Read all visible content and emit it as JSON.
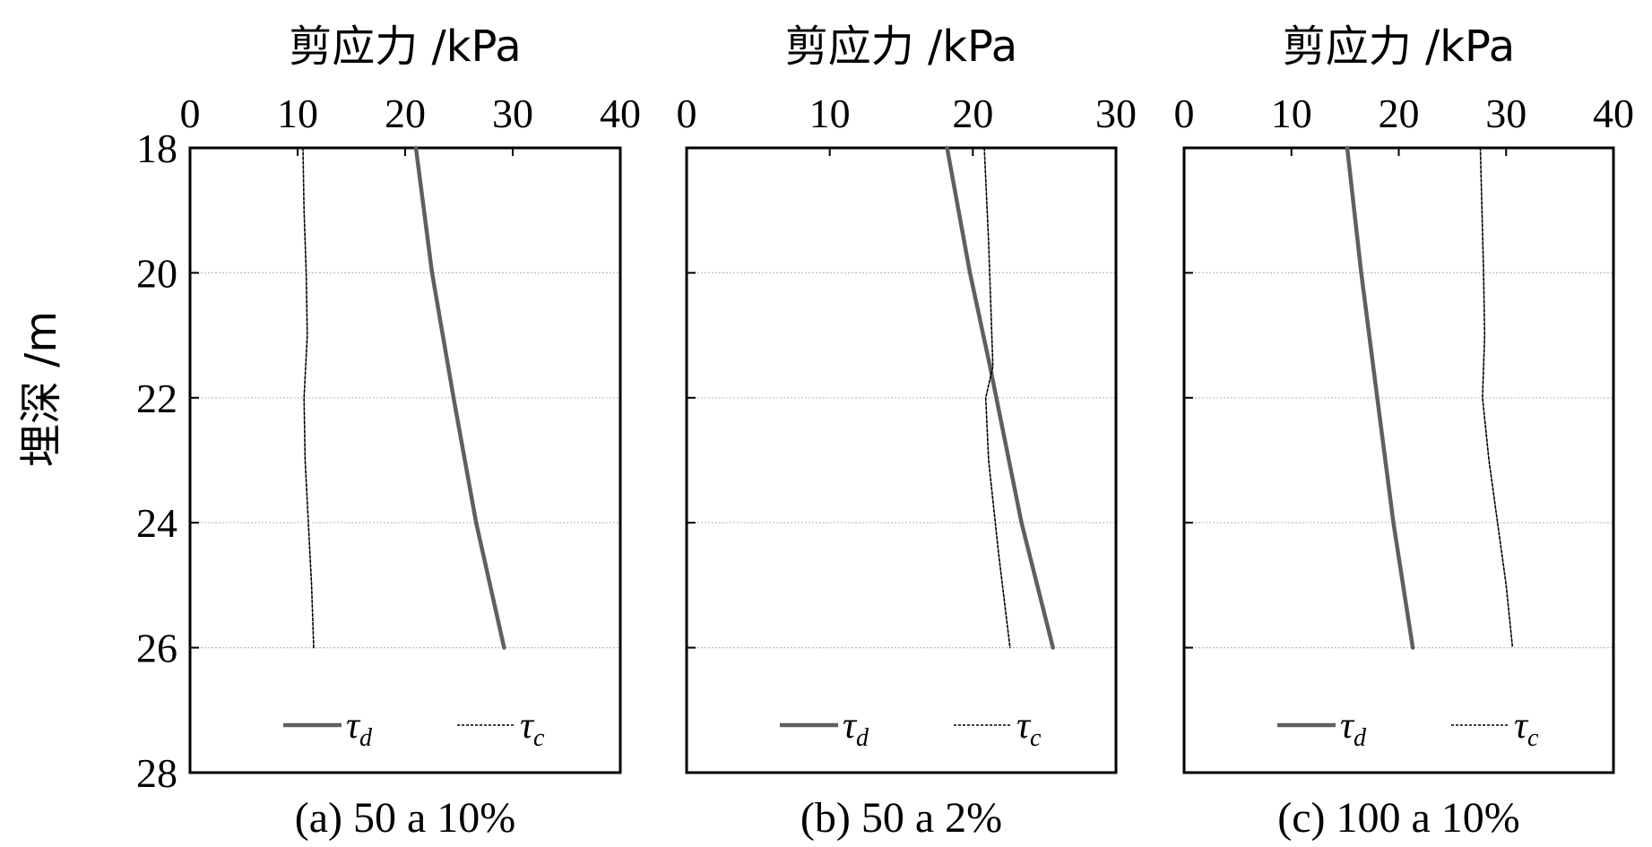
{
  "y_axis_label": "埋深 /m",
  "y_ticks": [
    "18",
    "20",
    "22",
    "24",
    "26",
    "28"
  ],
  "colors": {
    "td": "#5f5f5f",
    "tc": "#000000",
    "grid": "#bdbdbd"
  },
  "chart_data": [
    {
      "type": "line",
      "xlabel": "剪应力 /kPa",
      "caption": "(a) 50 a 10%",
      "xlim": [
        0,
        40
      ],
      "x_ticks": [
        "0",
        "10",
        "20",
        "30",
        "40"
      ],
      "ylim": [
        18,
        28
      ],
      "y_inverted": true,
      "grid": "horizontal",
      "legend": [
        {
          "symbol": "τ",
          "sub": "d"
        },
        {
          "symbol": "τ",
          "sub": "c"
        }
      ],
      "series": [
        {
          "name": "τd",
          "style": "solid-thick",
          "points": [
            [
              21.0,
              18
            ],
            [
              22.5,
              20
            ],
            [
              24.5,
              22
            ],
            [
              26.6,
              24
            ],
            [
              29.2,
              26
            ]
          ]
        },
        {
          "name": "τc",
          "style": "dotted",
          "points": [
            [
              10.5,
              18
            ],
            [
              10.6,
              19
            ],
            [
              10.8,
              20
            ],
            [
              10.9,
              21
            ],
            [
              10.6,
              22
            ],
            [
              10.7,
              23
            ],
            [
              11.0,
              24
            ],
            [
              11.3,
              25
            ],
            [
              11.5,
              26
            ]
          ]
        }
      ]
    },
    {
      "type": "line",
      "xlabel": "剪应力 /kPa",
      "caption": "(b) 50 a 2%",
      "xlim": [
        0,
        30
      ],
      "x_ticks": [
        "0",
        "10",
        "20",
        "30"
      ],
      "ylim": [
        18,
        28
      ],
      "y_inverted": true,
      "grid": "horizontal",
      "legend": [
        {
          "symbol": "τ",
          "sub": "d"
        },
        {
          "symbol": "τ",
          "sub": "c"
        }
      ],
      "series": [
        {
          "name": "τd",
          "style": "solid-thick",
          "points": [
            [
              18.2,
              18
            ],
            [
              19.8,
              20
            ],
            [
              21.2,
              21.5
            ],
            [
              23.4,
              24
            ],
            [
              25.6,
              26
            ]
          ]
        },
        {
          "name": "τc",
          "style": "dotted",
          "points": [
            [
              20.8,
              18
            ],
            [
              21.1,
              19.5
            ],
            [
              21.4,
              21.5
            ],
            [
              20.9,
              22
            ],
            [
              21.1,
              23
            ],
            [
              21.8,
              24.5
            ],
            [
              22.6,
              26
            ]
          ]
        }
      ]
    },
    {
      "type": "line",
      "xlabel": "剪应力 /kPa",
      "caption": "(c) 100 a 10%",
      "xlim": [
        0,
        40
      ],
      "x_ticks": [
        "0",
        "10",
        "20",
        "30",
        "40"
      ],
      "ylim": [
        18,
        28
      ],
      "y_inverted": true,
      "grid": "horizontal",
      "legend": [
        {
          "symbol": "τ",
          "sub": "d"
        },
        {
          "symbol": "τ",
          "sub": "c"
        }
      ],
      "series": [
        {
          "name": "τd",
          "style": "solid-thick",
          "points": [
            [
              15.2,
              18
            ],
            [
              16.5,
              20
            ],
            [
              18.0,
              22
            ],
            [
              19.5,
              24
            ],
            [
              21.3,
              26
            ]
          ]
        },
        {
          "name": "τc",
          "style": "dotted",
          "points": [
            [
              27.6,
              18
            ],
            [
              27.9,
              20
            ],
            [
              28.0,
              21
            ],
            [
              27.8,
              22
            ],
            [
              28.4,
              23
            ],
            [
              29.2,
              24
            ],
            [
              30.0,
              25
            ],
            [
              30.6,
              26
            ]
          ]
        }
      ]
    }
  ]
}
